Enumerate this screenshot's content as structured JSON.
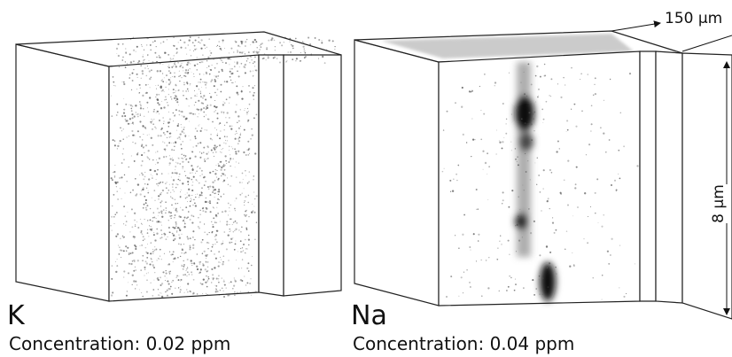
{
  "panels": [
    {
      "element": "K",
      "concentration": "Concentration: 0.02 ppm"
    },
    {
      "element": "Na",
      "concentration": "Concentration: 0.04 ppm"
    }
  ],
  "dimensions": {
    "depth": "150 μm",
    "height": "8 μm"
  }
}
